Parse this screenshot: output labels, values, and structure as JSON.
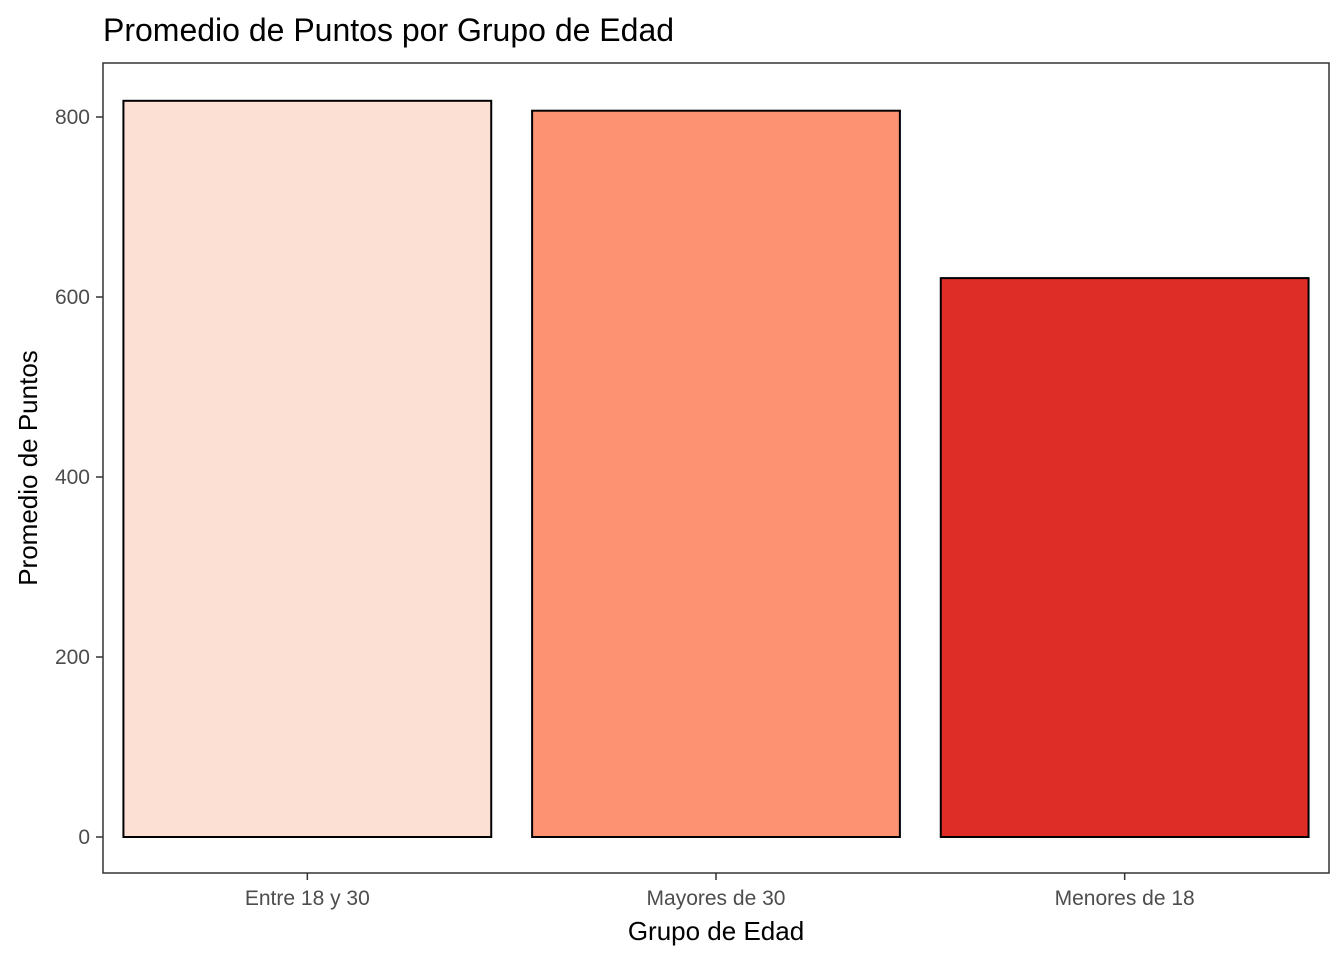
{
  "chart_data": {
    "type": "bar",
    "title": "Promedio de Puntos por Grupo de Edad",
    "xlabel": "Grupo de Edad",
    "ylabel": "Promedio de Puntos",
    "categories": [
      "Entre 18 y 30",
      "Mayores de 30",
      "Menores de 18"
    ],
    "values": [
      818,
      807,
      621
    ],
    "colors": [
      "#FCE0D4",
      "#FC9272",
      "#DE2D26"
    ],
    "yticks": [
      0,
      200,
      400,
      600,
      800
    ],
    "ylim": [
      -40,
      860
    ],
    "grid": false,
    "legend": "none"
  }
}
